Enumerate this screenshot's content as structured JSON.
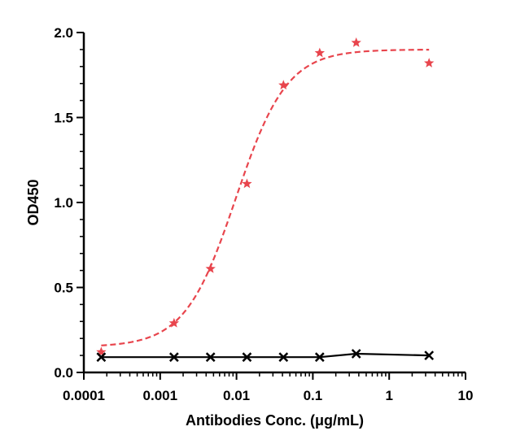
{
  "chart_data": {
    "type": "scatter",
    "xlabel": "Antibodies Conc. (μg/mL)",
    "ylabel": "OD450",
    "xscale": "log",
    "xlim": [
      0.0001,
      10
    ],
    "ylim": [
      0,
      2.0
    ],
    "x_ticks": [
      {
        "value": 0.0001,
        "label": "0.0001"
      },
      {
        "value": 0.001,
        "label": "0.001"
      },
      {
        "value": 0.01,
        "label": "0.01"
      },
      {
        "value": 0.1,
        "label": "0.1"
      },
      {
        "value": 1,
        "label": "1"
      },
      {
        "value": 10,
        "label": "10"
      }
    ],
    "y_ticks": [
      {
        "value": 0,
        "label": "0.0"
      },
      {
        "value": 0.5,
        "label": "0.5"
      },
      {
        "value": 1.0,
        "label": "1.0"
      },
      {
        "value": 1.5,
        "label": "1.5"
      },
      {
        "value": 2.0,
        "label": "2.0"
      }
    ],
    "grid": false,
    "legend": "none",
    "series": [
      {
        "marker": "star",
        "color": "#e8454d",
        "line_style": "dashed",
        "fit": "sigmoid",
        "fit_params": {
          "bottom": 0.15,
          "top": 1.9,
          "ec50": 0.0098,
          "hill": 1.3
        },
        "x": [
          0.000169,
          0.00152,
          0.00457,
          0.0137,
          0.0412,
          0.123,
          0.37,
          3.33
        ],
        "y": [
          0.12,
          0.29,
          0.61,
          1.11,
          1.69,
          1.88,
          1.94,
          1.82
        ]
      },
      {
        "marker": "x",
        "color": "#000000",
        "line_style": "solid",
        "fit": "flat",
        "x": [
          0.000169,
          0.00152,
          0.00457,
          0.0137,
          0.0412,
          0.123,
          0.37,
          3.33
        ],
        "y": [
          0.09,
          0.09,
          0.09,
          0.09,
          0.09,
          0.09,
          0.11,
          0.1
        ]
      }
    ]
  }
}
